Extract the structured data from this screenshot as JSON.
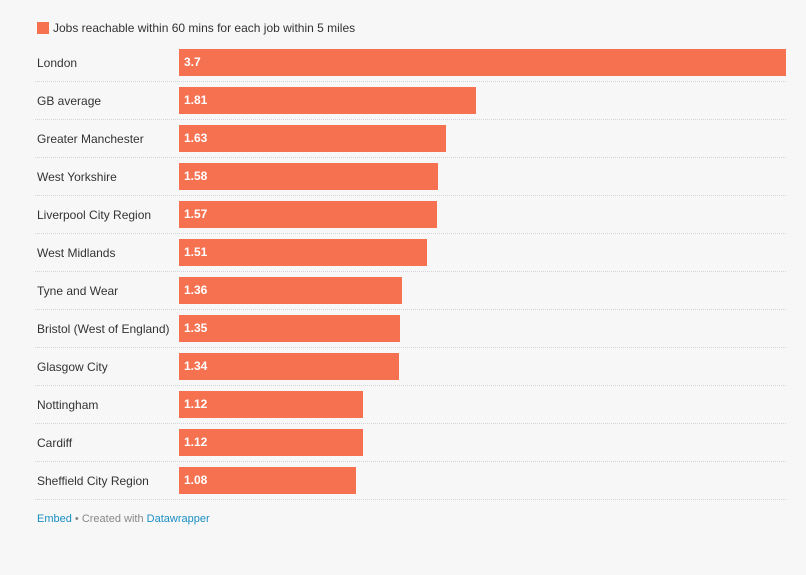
{
  "legend": {
    "label": "Jobs reachable within 60 mins for each job within 5 miles",
    "color": "#f57150"
  },
  "footer": {
    "embed_link": "Embed",
    "separator": " • Created with ",
    "credit_link": "Datawrapper"
  },
  "chart_data": {
    "type": "bar",
    "orientation": "horizontal",
    "categories": [
      "London",
      "GB average",
      "Greater Manchester",
      "West Yorkshire",
      "Liverpool City Region",
      "West Midlands",
      "Tyne and Wear",
      "Bristol (West of England)",
      "Glasgow City",
      "Nottingham",
      "Cardiff",
      "Sheffield City Region"
    ],
    "series": [
      {
        "name": "Jobs reachable within 60 mins for each job within 5 miles",
        "values": [
          3.7,
          1.81,
          1.63,
          1.58,
          1.57,
          1.51,
          1.36,
          1.35,
          1.34,
          1.12,
          1.12,
          1.08
        ]
      }
    ],
    "value_labels": [
      "3.7",
      "1.81",
      "1.63",
      "1.58",
      "1.57",
      "1.51",
      "1.36",
      "1.35",
      "1.34",
      "1.12",
      "1.12",
      "1.08"
    ],
    "xlim": [
      0,
      3.7
    ],
    "grid": false,
    "legend_position": "top-left",
    "bar_color": "#f57150"
  }
}
